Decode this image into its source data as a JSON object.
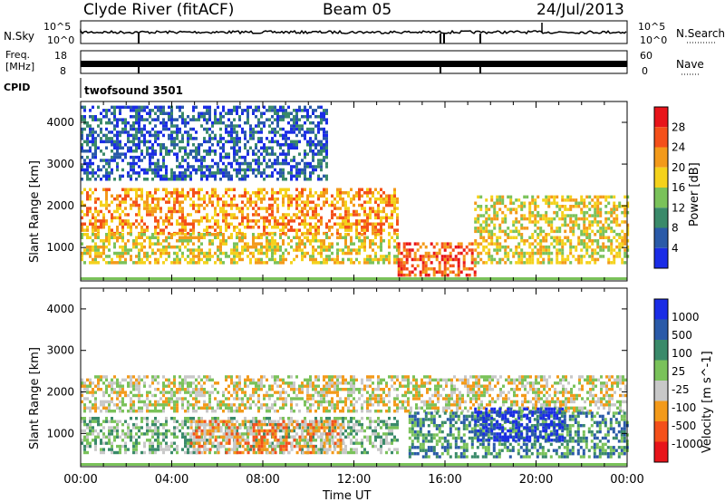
{
  "header": {
    "station": "Clyde River (fitACF)",
    "beam": "Beam 05",
    "date": "24/Jul/2013"
  },
  "panels": {
    "nsky": {
      "label": "N.Sky",
      "tick_top": "10^5",
      "tick_bottom": "10^0",
      "right_label": "N.Search",
      "right_tick_top": "10^5",
      "right_tick_bottom": "10^0"
    },
    "freq": {
      "label": "Freq.",
      "unit": "[MHz]",
      "tick_top": "18",
      "tick_bottom": "8",
      "right_label": "Nave",
      "right_tick_top": "60",
      "right_tick_bottom": "0"
    },
    "cpid": {
      "label": "CPID",
      "value": "twofsound 3501"
    }
  },
  "chart_data": [
    {
      "type": "heatmap",
      "name": "power",
      "ylabel": "Slant Range [km]",
      "ylim": [
        200,
        4500
      ],
      "yticks": [
        "1000",
        "2000",
        "3000",
        "4000"
      ],
      "colorbar_label": "Power [dB]",
      "colorbar_ticks": [
        "4",
        "8",
        "12",
        "16",
        "20",
        "24",
        "28"
      ],
      "colors": [
        "#1a2ce6",
        "#2a5aa8",
        "#3a8a6a",
        "#7ac25a",
        "#f4d21c",
        "#f39a1a",
        "#f4501a",
        "#e8141a"
      ],
      "bands": [
        {
          "start": 0.0,
          "end": 0.58,
          "y0": 1300,
          "y1": 2400,
          "level": 5
        },
        {
          "start": 0.0,
          "end": 0.58,
          "y0": 600,
          "y1": 1300,
          "level": 4
        },
        {
          "start": 0.58,
          "end": 0.72,
          "y0": 300,
          "y1": 1100,
          "level": 6
        },
        {
          "start": 0.72,
          "end": 1.0,
          "y0": 600,
          "y1": 2200,
          "level": 4
        },
        {
          "start": 0.0,
          "end": 0.45,
          "y0": 2600,
          "y1": 4400,
          "level": 1
        }
      ]
    },
    {
      "type": "heatmap",
      "name": "velocity",
      "ylabel": "Slant Range [km]",
      "ylim": [
        200,
        4500
      ],
      "yticks": [
        "1000",
        "2000",
        "3000",
        "4000"
      ],
      "colorbar_label": "Velocity [m s^-1]",
      "colorbar_ticks": [
        "1000",
        "500",
        "100",
        "25",
        "-25",
        "-100",
        "-500",
        "-1000"
      ],
      "colors": [
        "#1a2ce6",
        "#2a5aa8",
        "#3a8a6a",
        "#7ac25a",
        "#c8c8c8",
        "#f39a1a",
        "#f4501a",
        "#e8141a"
      ],
      "bands": [
        {
          "start": 0.0,
          "end": 1.0,
          "y0": 1500,
          "y1": 2400,
          "level": 4
        },
        {
          "start": 0.0,
          "end": 0.58,
          "y0": 500,
          "y1": 1400,
          "level": 3
        },
        {
          "start": 0.2,
          "end": 0.48,
          "y0": 500,
          "y1": 1300,
          "level": 5
        },
        {
          "start": 0.6,
          "end": 1.0,
          "y0": 400,
          "y1": 1500,
          "level": 2
        },
        {
          "start": 0.72,
          "end": 0.88,
          "y0": 800,
          "y1": 1600,
          "level": 0
        }
      ]
    }
  ],
  "xaxis": {
    "label": "Time UT",
    "ticks": [
      "00:00",
      "04:00",
      "08:00",
      "12:00",
      "16:00",
      "20:00",
      "00:00"
    ]
  }
}
